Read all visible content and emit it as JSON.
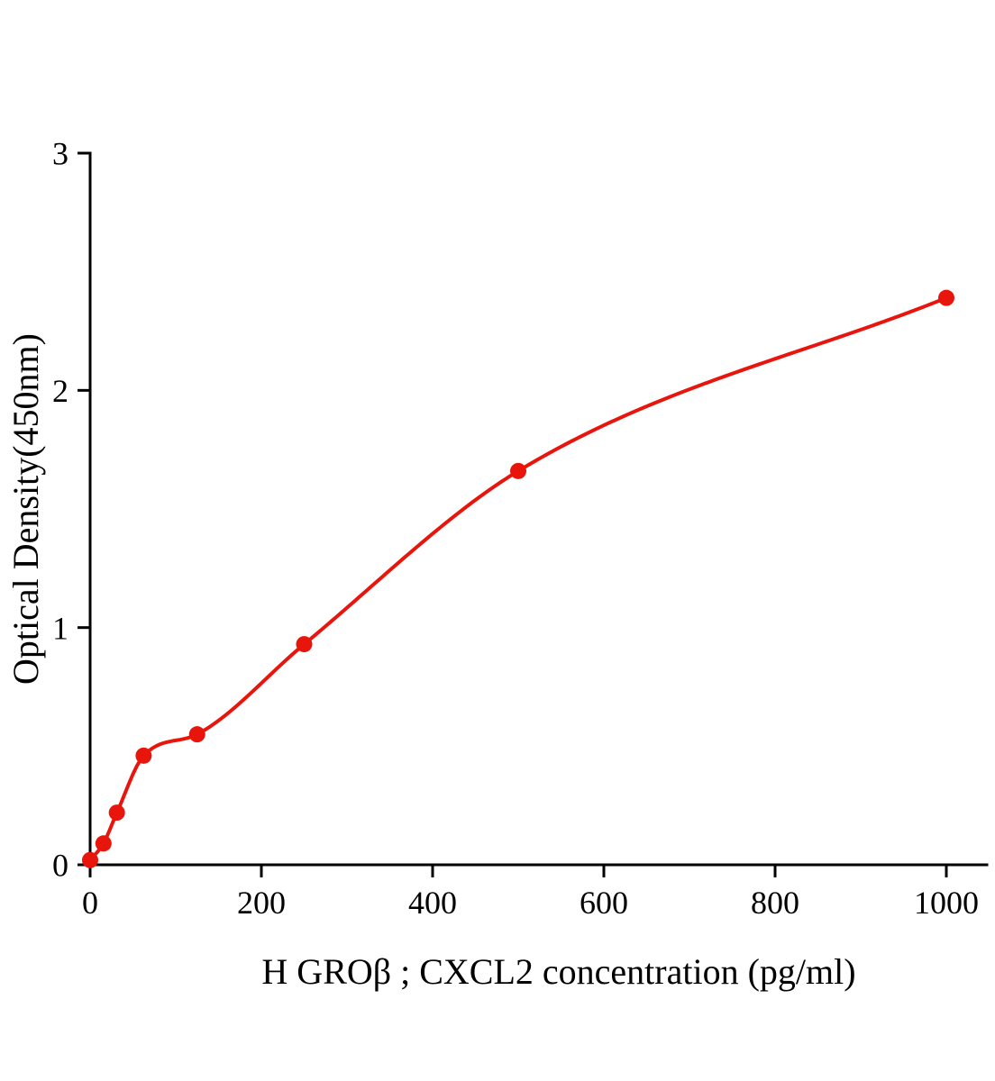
{
  "chart_data": {
    "type": "scatter",
    "title": "",
    "xlabel": "H GROβ ; CXCL2 concentration (pg/ml)",
    "ylabel": "Optical Density(450nm)",
    "x": [
      0,
      15.6,
      31.25,
      62.5,
      125,
      250,
      500,
      1000
    ],
    "y": [
      0.02,
      0.09,
      0.22,
      0.46,
      0.55,
      0.93,
      1.66,
      2.39
    ],
    "xlim": [
      0,
      1047
    ],
    "ylim": [
      0,
      3
    ],
    "xticks": [
      0,
      200,
      400,
      600,
      800,
      1000
    ],
    "yticks": [
      0,
      1,
      2,
      3
    ],
    "grid": false,
    "legend": false,
    "point_color": "#e8150d",
    "curve_color": "#e8150d",
    "axis_color": "#000000",
    "annotation": "fitted smooth standard curve through data points"
  }
}
